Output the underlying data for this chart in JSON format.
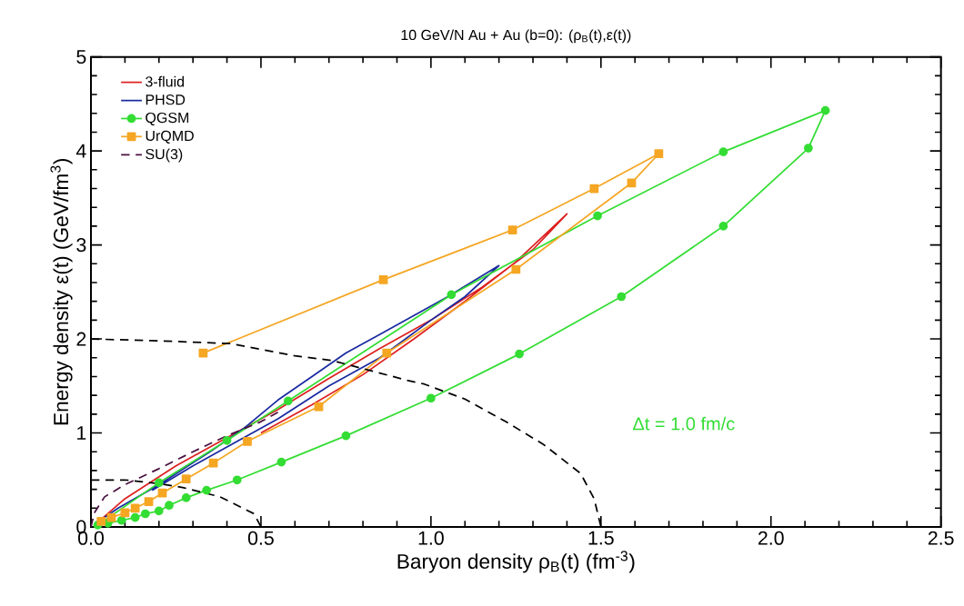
{
  "chart_data": {
    "type": "line",
    "title": "10 GeV/N Au + Au (b=0):  (ρ$_{B}$(t),ε(t))",
    "xlabel": "Baryon density ρ$_{B}$(t) (fm$^{-3}$)",
    "ylabel": "Energy density ε(t) (GeV/fm$^{3}$)",
    "xlim": [
      0,
      2.5
    ],
    "ylim": [
      0,
      5
    ],
    "xticks": [
      {
        "value": 0,
        "label": "0.0"
      },
      0.5,
      {
        "value": 1,
        "label": "1.0"
      },
      1.5,
      {
        "value": 2,
        "label": "2.0"
      },
      2.5
    ],
    "yticks": [
      0,
      1,
      2,
      3,
      4,
      5
    ],
    "grid": false,
    "legend": "top left",
    "annotations": [
      "Δt = 1.0 fm/c"
    ],
    "series": [
      {
        "name": "3-fluid",
        "color": "#dd2020",
        "marker": "none",
        "line_style": "solid",
        "x": [
          0.02,
          0.1,
          0.25,
          0.4,
          0.55,
          0.7,
          0.85,
          1.0,
          1.15,
          1.3,
          1.4,
          1.25,
          1.1,
          0.95,
          0.8,
          0.65,
          0.5
        ],
        "values": [
          0.05,
          0.3,
          0.65,
          0.95,
          1.25,
          1.58,
          1.9,
          2.2,
          2.55,
          2.95,
          3.33,
          2.82,
          2.4,
          2.0,
          1.62,
          1.3,
          1.0
        ]
      },
      {
        "name": "PHSD",
        "color": "#1a2aa0",
        "marker": "none",
        "line_style": "solid",
        "x": [
          0.02,
          0.08,
          0.2,
          0.35,
          0.45,
          0.55,
          0.65,
          0.75,
          0.85,
          0.95,
          1.05,
          1.2,
          1.1,
          1.0,
          0.85,
          0.7,
          0.55,
          0.4,
          0.3,
          0.18
        ],
        "values": [
          0.05,
          0.2,
          0.45,
          0.8,
          1.05,
          1.35,
          1.6,
          1.85,
          2.05,
          2.25,
          2.45,
          2.78,
          2.45,
          2.2,
          1.8,
          1.5,
          1.15,
          0.85,
          0.65,
          0.39
        ]
      },
      {
        "name": "QGSM",
        "color": "#33dd33",
        "marker": "circle",
        "line_style": "solid",
        "x": [
          0.02,
          0.2,
          0.4,
          0.58,
          1.06,
          1.49,
          1.86,
          2.16,
          2.11,
          1.86,
          1.56,
          1.26,
          1.0,
          0.75,
          0.56,
          0.43,
          0.34,
          0.28,
          0.23,
          0.2,
          0.16,
          0.13,
          0.09,
          0.05
        ],
        "values": [
          0.02,
          0.47,
          0.92,
          1.34,
          2.47,
          3.31,
          3.99,
          4.43,
          4.03,
          3.2,
          2.45,
          1.84,
          1.37,
          0.97,
          0.69,
          0.5,
          0.39,
          0.31,
          0.23,
          0.17,
          0.14,
          0.1,
          0.07,
          0.04
        ]
      },
      {
        "name": "UrQMD",
        "color": "#f5a623",
        "marker": "square",
        "line_style": "solid",
        "x": [
          0.33,
          0.86,
          1.24,
          1.48,
          1.67,
          1.59,
          1.25,
          0.87,
          0.67,
          0.46,
          0.36,
          0.28,
          0.21,
          0.17,
          0.13,
          0.1,
          0.06,
          0.03
        ],
        "values": [
          1.85,
          2.63,
          3.16,
          3.6,
          3.97,
          3.66,
          2.74,
          1.85,
          1.28,
          0.91,
          0.68,
          0.51,
          0.36,
          0.27,
          0.2,
          0.15,
          0.1,
          0.06
        ]
      },
      {
        "name": "SU(3)",
        "color": "#4a1040",
        "marker": "none",
        "line_style": "dashed",
        "x": [
          0,
          0.01,
          0.04,
          0.1,
          0.2,
          0.3,
          0.4,
          0.5,
          0.55
        ],
        "values": [
          0,
          0.15,
          0.32,
          0.45,
          0.62,
          0.8,
          0.97,
          1.12,
          1.22
        ]
      },
      {
        "color": "#000000",
        "marker": "none",
        "line_style": "dashed",
        "x": [
          0,
          0.2,
          0.41,
          0.6,
          0.71,
          0.93,
          0.98,
          1.1,
          1.22,
          1.33,
          1.44,
          1.48,
          1.5
        ],
        "values": [
          2.0,
          1.98,
          1.95,
          1.82,
          1.77,
          1.56,
          1.52,
          1.36,
          1.12,
          0.88,
          0.57,
          0.3,
          0
        ]
      },
      {
        "color": "#000000",
        "marker": "none",
        "line_style": "dashed",
        "x": [
          0,
          0.1,
          0.2,
          0.27,
          0.38,
          0.48,
          0.5
        ],
        "values": [
          0.5,
          0.5,
          0.46,
          0.42,
          0.32,
          0.14,
          0
        ]
      }
    ]
  }
}
